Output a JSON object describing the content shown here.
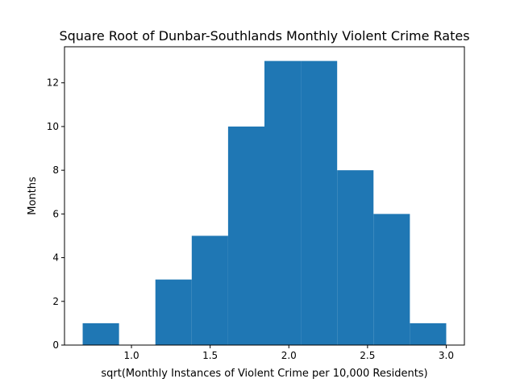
{
  "chart_data": {
    "type": "bar",
    "subtype": "histogram",
    "title": "Square Root of Dunbar-Southlands Monthly Violent Crime Rates",
    "xlabel": "sqrt(Monthly Instances of Violent Crime per 10,000 Residents)",
    "ylabel": "Months",
    "bin_edges": [
      0.69,
      0.921,
      1.152,
      1.383,
      1.614,
      1.845,
      2.076,
      2.307,
      2.538,
      2.769,
      3.0
    ],
    "counts": [
      1,
      0,
      3,
      5,
      10,
      13,
      13,
      8,
      6,
      1
    ],
    "xlim": [
      0.5745,
      3.1155
    ],
    "ylim": [
      0,
      13.65
    ],
    "xticks": [
      1.0,
      1.5,
      2.0,
      2.5,
      3.0
    ],
    "xtick_labels": [
      "1.0",
      "1.5",
      "2.0",
      "2.5",
      "3.0"
    ],
    "yticks": [
      0,
      2,
      4,
      6,
      8,
      10,
      12
    ],
    "ytick_labels": [
      "0",
      "2",
      "4",
      "6",
      "8",
      "10",
      "12"
    ],
    "bar_color": "#1f77b4",
    "grid": false,
    "legend": "none"
  }
}
